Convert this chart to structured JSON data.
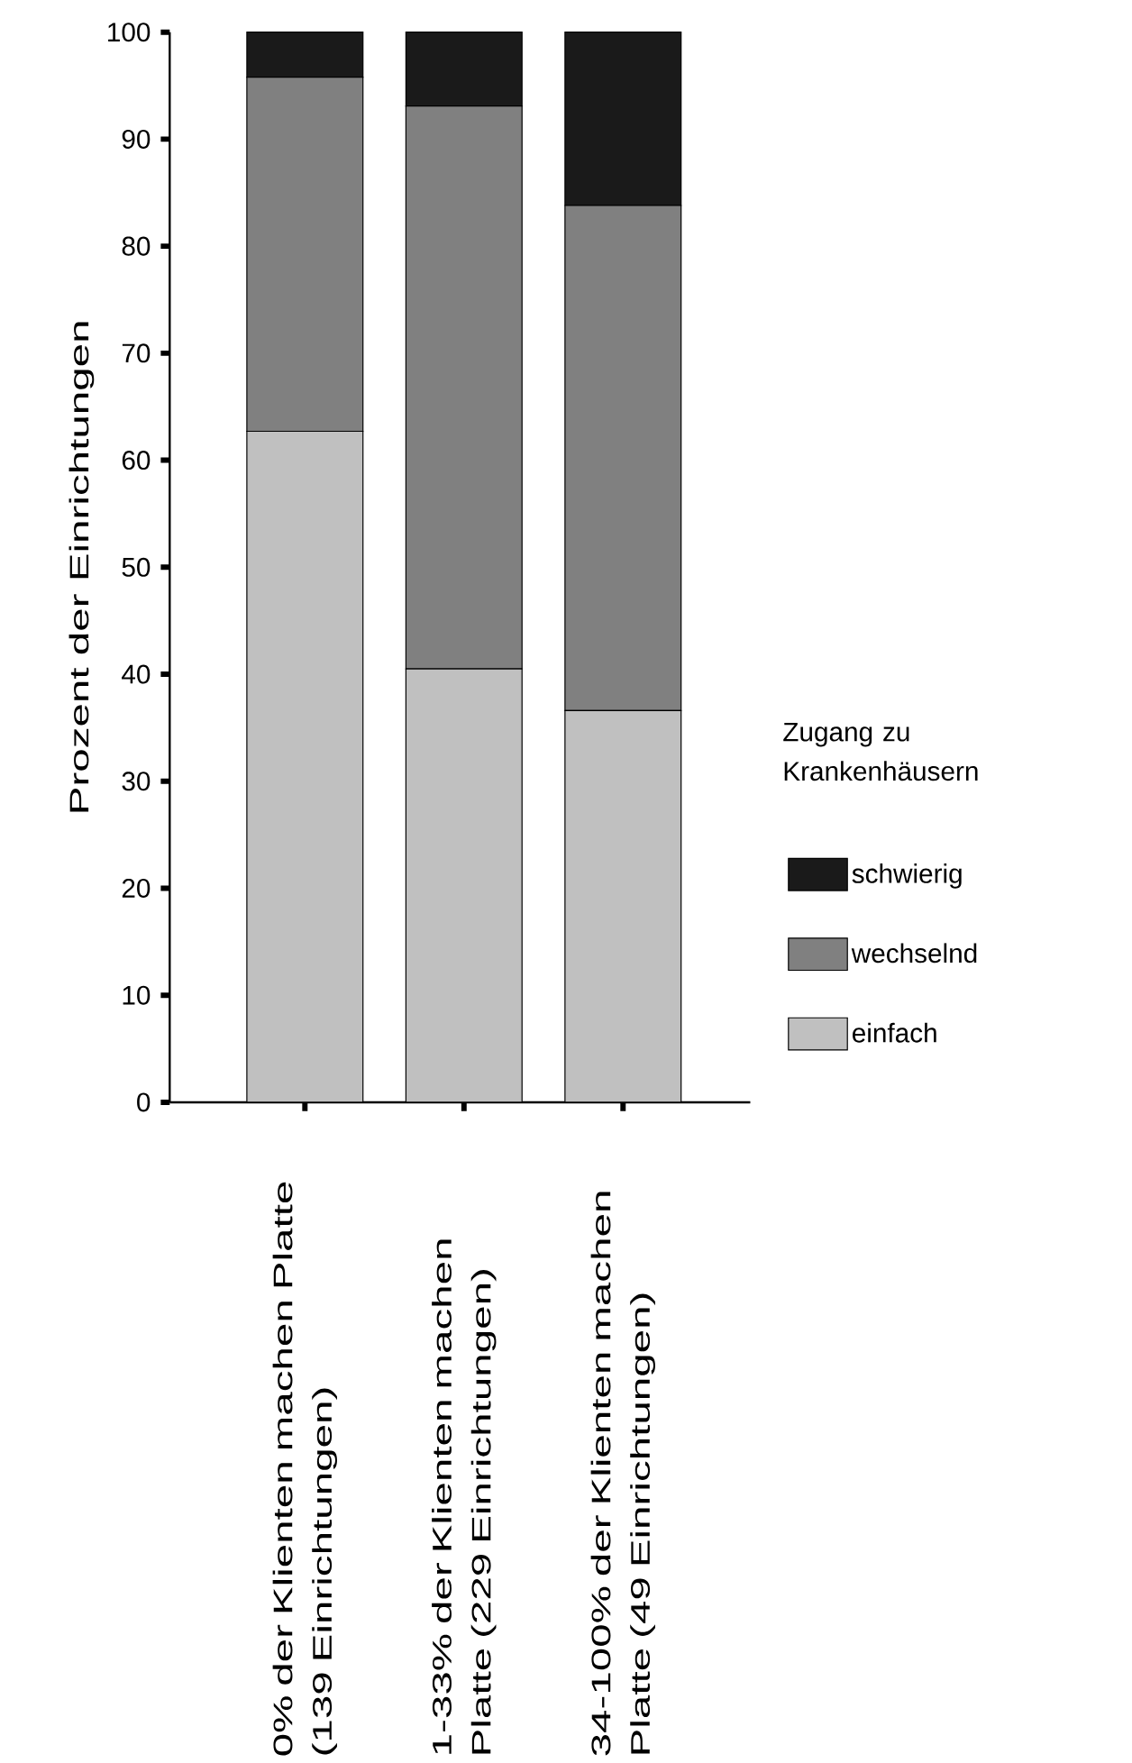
{
  "chart_data": {
    "type": "bar",
    "stacked": true,
    "ylabel": "Prozent der Einrichtungen",
    "categories": [
      "0% der Klienten machen Platte (139 Einrichtungen)",
      "1-33% der Klienten machen Platte (229 Einrichtungen)",
      "34-100% der Klienten machen Platte (49 Einrichtungen)"
    ],
    "series": [
      {
        "name": "einfach",
        "color": "#c0c0c0",
        "values": [
          62.7,
          40.5,
          36.6
        ]
      },
      {
        "name": "wechselnd",
        "color": "#808080",
        "values": [
          33.1,
          52.6,
          47.2
        ]
      },
      {
        "name": "schwierig",
        "color": "#1a1a1a",
        "values": [
          4.2,
          6.9,
          16.2
        ]
      }
    ],
    "ylim": [
      0,
      100
    ],
    "yticks": [
      0,
      10,
      20,
      30,
      40,
      50,
      60,
      70,
      80,
      90,
      100
    ],
    "legend": "right",
    "legend_title": "Zugang zu Krankenhäusern",
    "grid": false
  }
}
